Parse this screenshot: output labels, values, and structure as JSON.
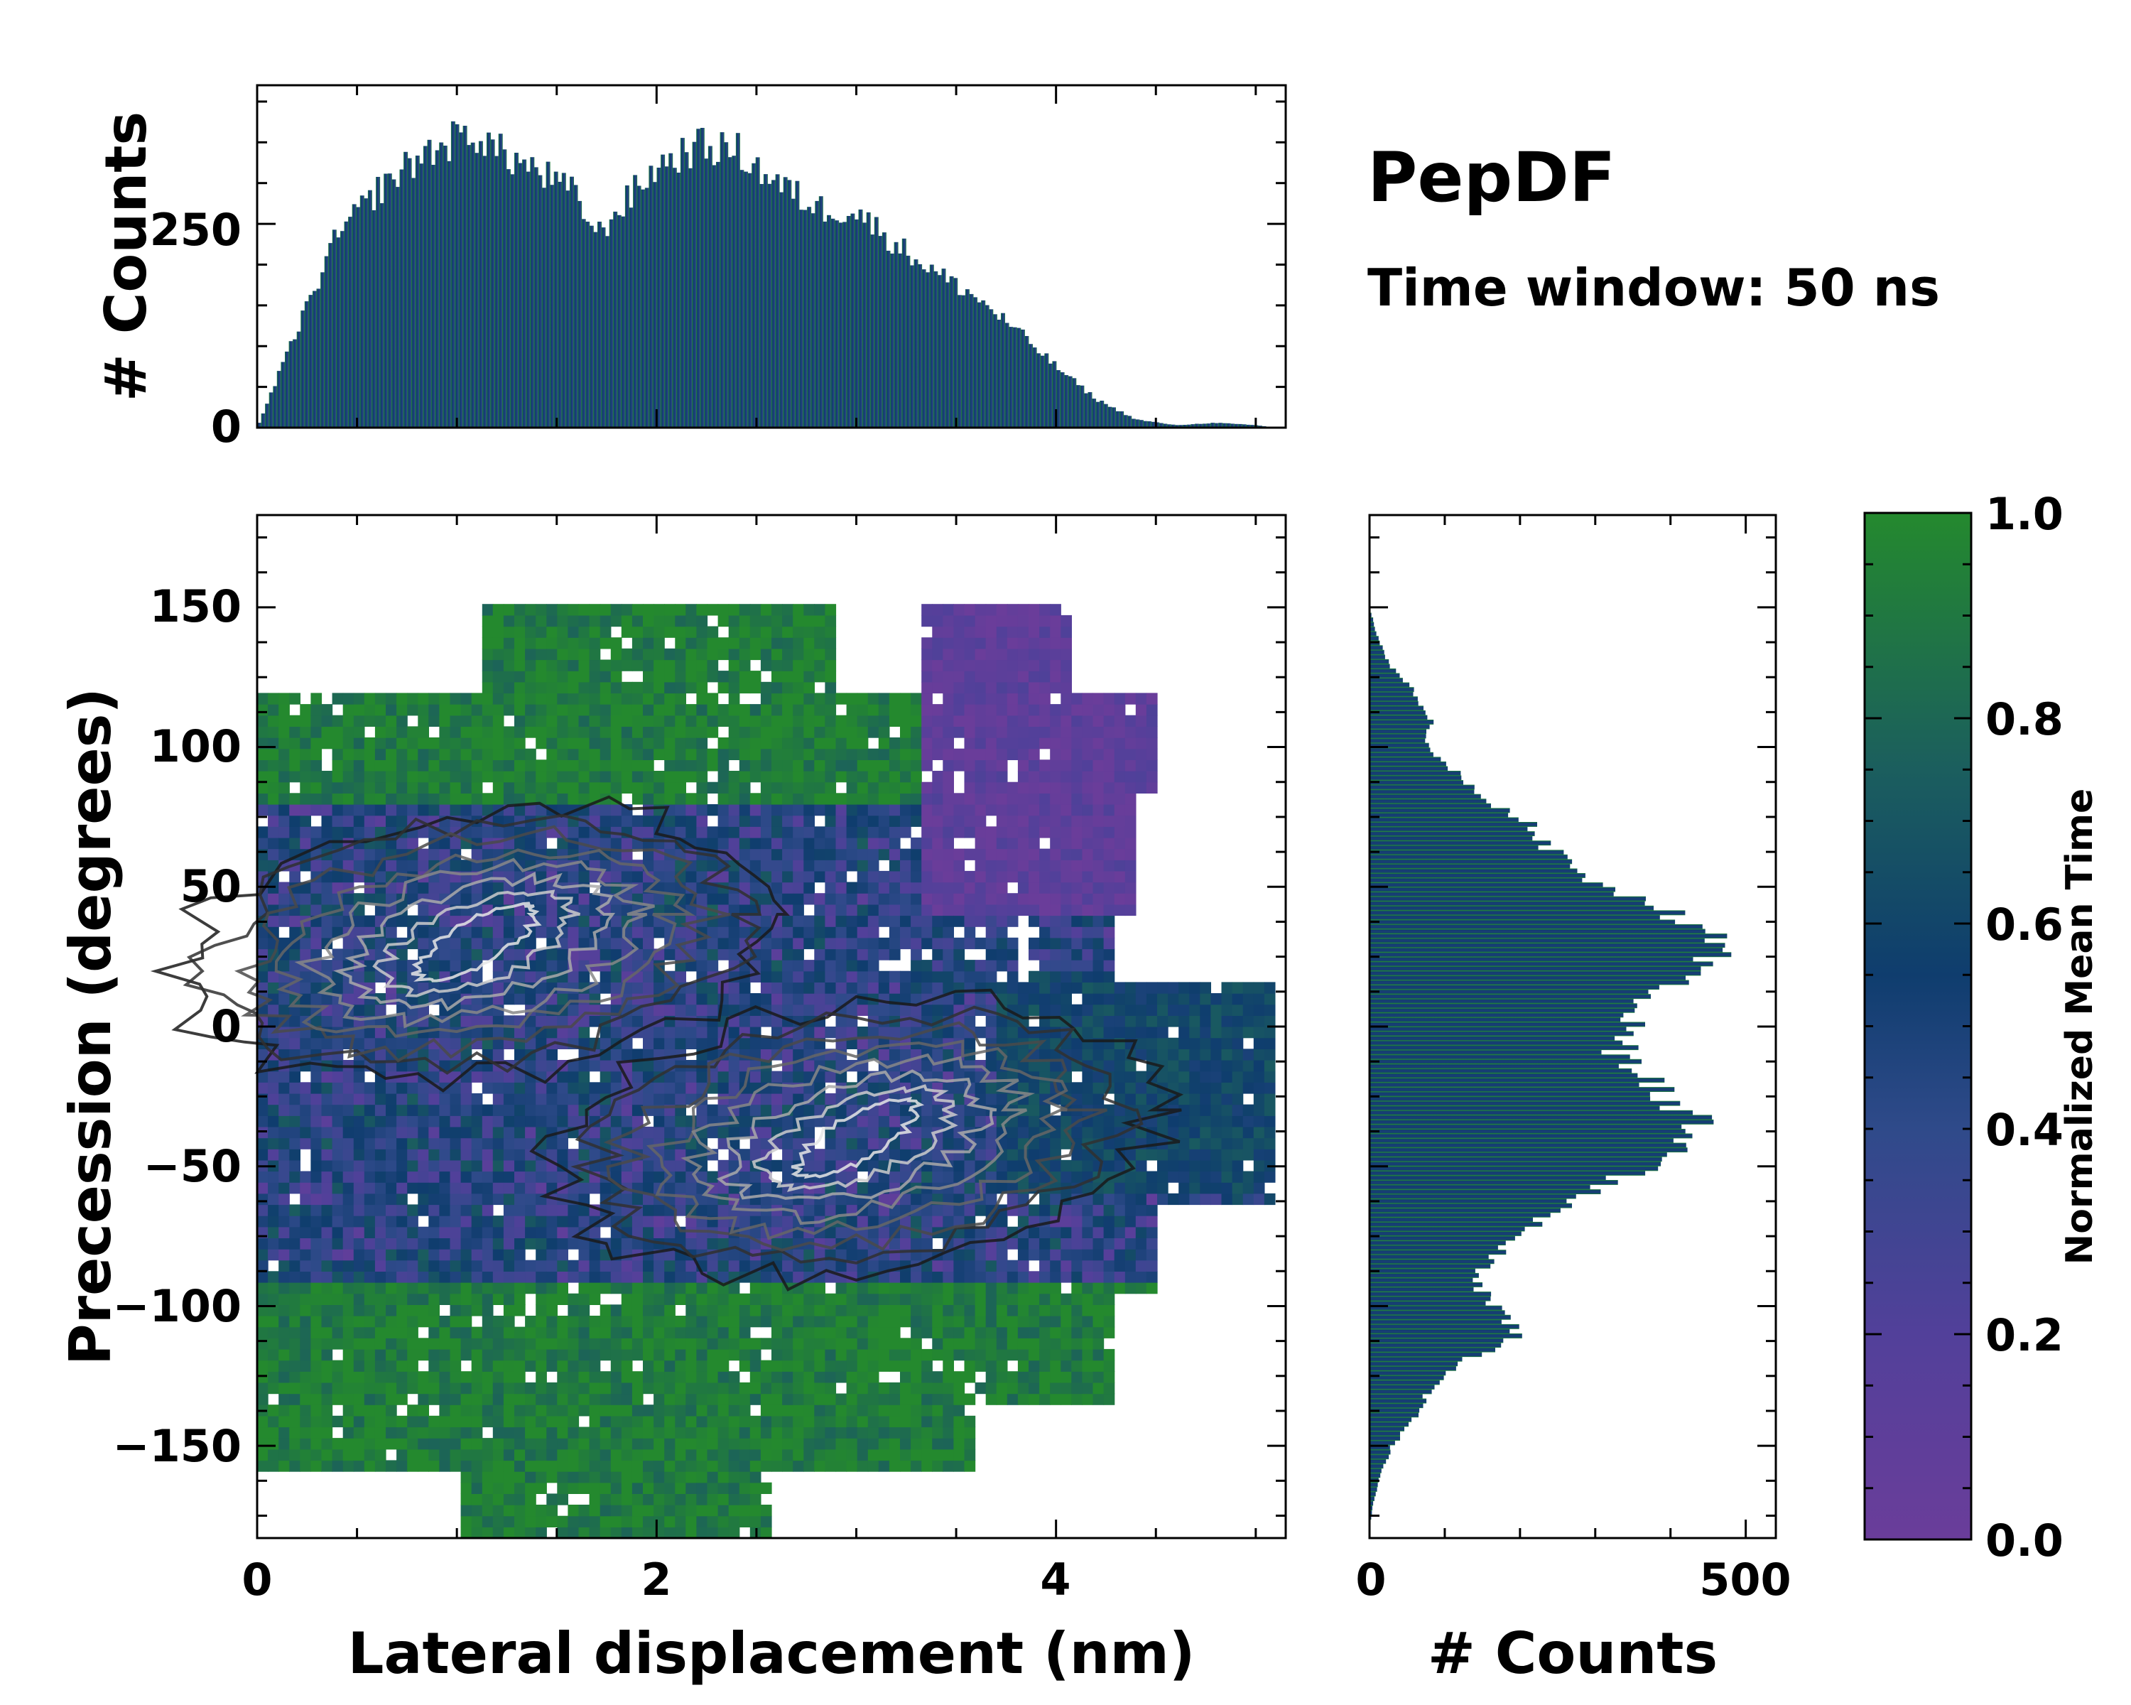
{
  "title": "PepDF",
  "subtitle": "Time window: 50 ns",
  "chart_data": [
    {
      "type": "heatmap",
      "name": "main-2d-histogram",
      "xlabel": "Lateral displacement (nm)",
      "ylabel": "Precession (degrees)",
      "xlim": [
        0,
        5.15
      ],
      "ylim": [
        -183,
        183
      ],
      "xticks": [
        0,
        2,
        4
      ],
      "xtick_labels": [
        "0",
        "2",
        "4"
      ],
      "yticks": [
        150,
        100,
        50,
        0,
        -50,
        -100,
        -150
      ],
      "ytick_labels": [
        "150",
        "100",
        "50",
        "0",
        "−50",
        "−100",
        "−150"
      ],
      "color_meaning": "Normalized Mean Time",
      "regions": [
        {
          "label": "upper green band",
          "x": [
            0.1,
            3.0
          ],
          "y": [
            80,
            140
          ],
          "value": 0.95
        },
        {
          "label": "upper purple lobe",
          "x": [
            3.3,
            4.5
          ],
          "y": [
            40,
            150
          ],
          "value": 0.1
        },
        {
          "label": "mixed middle",
          "x": [
            0,
            3.7
          ],
          "y": [
            -60,
            80
          ],
          "value": 0.45
        },
        {
          "label": "right teal lobe",
          "x": [
            3.7,
            5.1
          ],
          "y": [
            -60,
            20
          ],
          "value": 0.65
        },
        {
          "label": "lower green band",
          "x": [
            0,
            2.4
          ],
          "y": [
            -180,
            -90
          ],
          "value": 0.95
        }
      ],
      "density_peaks": [
        {
          "x": 1.1,
          "y": 30
        },
        {
          "x": 3.0,
          "y": -40
        }
      ]
    },
    {
      "type": "bar",
      "name": "top-marginal-histogram",
      "xlabel": "",
      "ylabel": "# Counts",
      "ylim": [
        0,
        420
      ],
      "yticks": [
        0,
        250
      ],
      "ytick_labels": [
        "0",
        "250"
      ],
      "bin_centers_nm": [
        0.0,
        0.2,
        0.4,
        0.6,
        0.8,
        1.0,
        1.1,
        1.2,
        1.4,
        1.6,
        1.7,
        1.8,
        2.0,
        2.2,
        2.4,
        2.6,
        2.8,
        3.0,
        3.2,
        3.4,
        3.6,
        3.8,
        4.0,
        4.2,
        4.4,
        4.6,
        4.8,
        5.0,
        5.1
      ],
      "values": [
        0,
        120,
        235,
        290,
        330,
        355,
        360,
        340,
        315,
        285,
        235,
        265,
        320,
        345,
        340,
        300,
        270,
        265,
        225,
        190,
        160,
        120,
        75,
        35,
        10,
        3,
        6,
        3,
        0
      ]
    },
    {
      "type": "bar",
      "orientation": "horizontal",
      "name": "right-marginal-histogram",
      "xlabel": "# Counts",
      "ylabel": "",
      "xlim": [
        0,
        540
      ],
      "xticks": [
        0,
        500
      ],
      "xtick_labels": [
        "0",
        "500"
      ],
      "bin_centers_deg": [
        150,
        140,
        130,
        120,
        110,
        100,
        90,
        80,
        70,
        60,
        50,
        40,
        30,
        20,
        10,
        0,
        -10,
        -20,
        -30,
        -40,
        -50,
        -60,
        -70,
        -80,
        -90,
        -100,
        -110,
        -120,
        -130,
        -140,
        -150,
        -160,
        -170,
        -180
      ],
      "values": [
        0,
        10,
        25,
        60,
        80,
        80,
        120,
        170,
        220,
        260,
        320,
        400,
        460,
        450,
        380,
        340,
        330,
        380,
        420,
        430,
        370,
        280,
        230,
        180,
        130,
        170,
        200,
        120,
        80,
        60,
        30,
        15,
        5,
        0
      ]
    },
    {
      "type": "colorbar",
      "name": "time-colorbar",
      "label": "Normalized Mean Time",
      "range": [
        0.0,
        1.0
      ],
      "ticks": [
        1.0,
        0.8,
        0.6,
        0.4,
        0.2,
        0.0
      ],
      "tick_labels": [
        "1.0",
        "0.8",
        "0.6",
        "0.4",
        "0.2",
        "0.0"
      ],
      "colors": [
        "#6a3d9a",
        "#52409a",
        "#2f4a8a",
        "#0f3d6e",
        "#1b5e5e",
        "#24892e"
      ]
    }
  ]
}
